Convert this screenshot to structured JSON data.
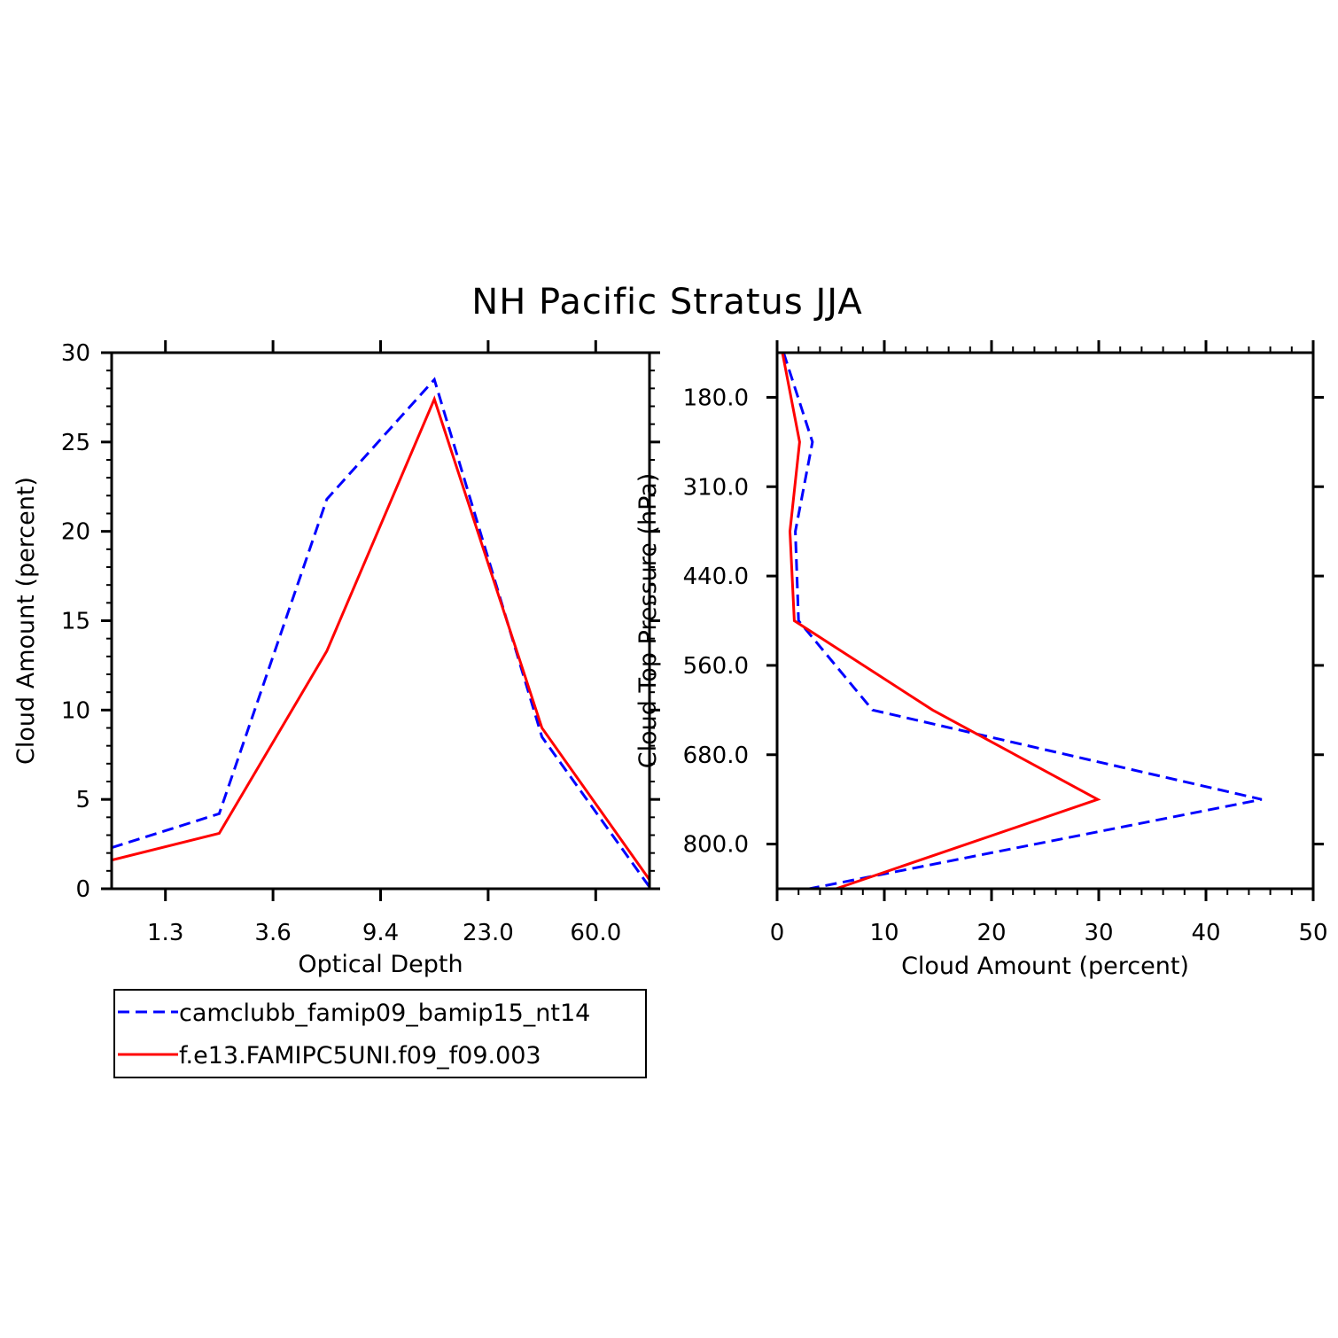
{
  "figure": {
    "title": "NH Pacific Stratus JJA"
  },
  "chart_data": [
    {
      "type": "line",
      "title": "",
      "xlabel": "Optical Depth",
      "ylabel": "Cloud Amount (percent)",
      "x_tick_labels": [
        "1.3",
        "3.6",
        "9.4",
        "23.0",
        "60.0"
      ],
      "y_ticks": [
        0,
        5,
        10,
        15,
        20,
        25,
        30
      ],
      "ylim": [
        0,
        30
      ],
      "x": [
        0.3,
        2.4,
        6.2,
        14.4,
        37.6,
        100.0
      ],
      "series": [
        {
          "name": "camclubb_famip09_bamip15_nt14",
          "color": "#0000ff",
          "dash": "dashed",
          "values": [
            2.3,
            4.2,
            21.8,
            28.5,
            8.5,
            0.1
          ]
        },
        {
          "name": "f.e13.FAMIPC5UNI.f09_f09.003",
          "color": "#ff0000",
          "dash": "solid",
          "values": [
            1.6,
            3.1,
            13.3,
            27.4,
            9.0,
            0.5
          ]
        }
      ]
    },
    {
      "type": "line",
      "title": "",
      "xlabel": "Cloud Amount (percent)",
      "ylabel": "Cloud Top Pressure (hPa)",
      "x_ticks": [
        0,
        10,
        20,
        30,
        40,
        50
      ],
      "xlim": [
        0,
        50
      ],
      "y_tick_labels": [
        "180.0",
        "310.0",
        "440.0",
        "560.0",
        "680.0",
        "800.0"
      ],
      "pressure_levels": [
        90,
        245,
        375,
        500,
        620,
        740,
        900
      ],
      "series": [
        {
          "name": "camclubb_famip09_bamip15_nt14",
          "color": "#0000ff",
          "dash": "dashed",
          "values": [
            0.6,
            3.3,
            1.7,
            2.0,
            8.9,
            45.2,
            3.0
          ]
        },
        {
          "name": "f.e13.FAMIPC5UNI.f09_f09.003",
          "color": "#ff0000",
          "dash": "solid",
          "values": [
            0.5,
            2.1,
            1.2,
            1.6,
            14.5,
            29.9,
            5.5
          ]
        }
      ]
    }
  ],
  "legend": {
    "entries": [
      {
        "label": "camclubb_famip09_bamip15_nt14",
        "color": "#0000ff",
        "dash": "dashed"
      },
      {
        "label": "f.e13.FAMIPC5UNI.f09_f09.003",
        "color": "#ff0000",
        "dash": "solid"
      }
    ]
  }
}
